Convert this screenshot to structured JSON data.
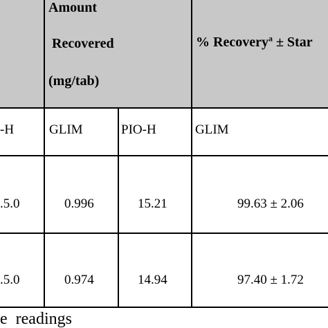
{
  "header": {
    "amount_line1": "Amount",
    "amount_line2": "Recovered",
    "amount_line3": "(mg/tab)",
    "recovery_prefix": "% Recovery",
    "recovery_sup": "a",
    "recovery_suffix": " ± Star"
  },
  "subheader": {
    "col0": "-H",
    "col1": "GLIM",
    "col2": "PIO-H",
    "col3": "GLIM"
  },
  "rows": [
    {
      "col0": ".5.0",
      "glim": "0.996",
      "pio_h": "15.21",
      "recovery": "99.63 ± 2.06"
    },
    {
      "col0": ".5.0",
      "glim": "0.974",
      "pio_h": "14.94",
      "recovery": "97.40 ± 1.72"
    }
  ],
  "footnote": "e  readings",
  "colors": {
    "header_bg": "#c8c8c8",
    "border": "#000000"
  }
}
